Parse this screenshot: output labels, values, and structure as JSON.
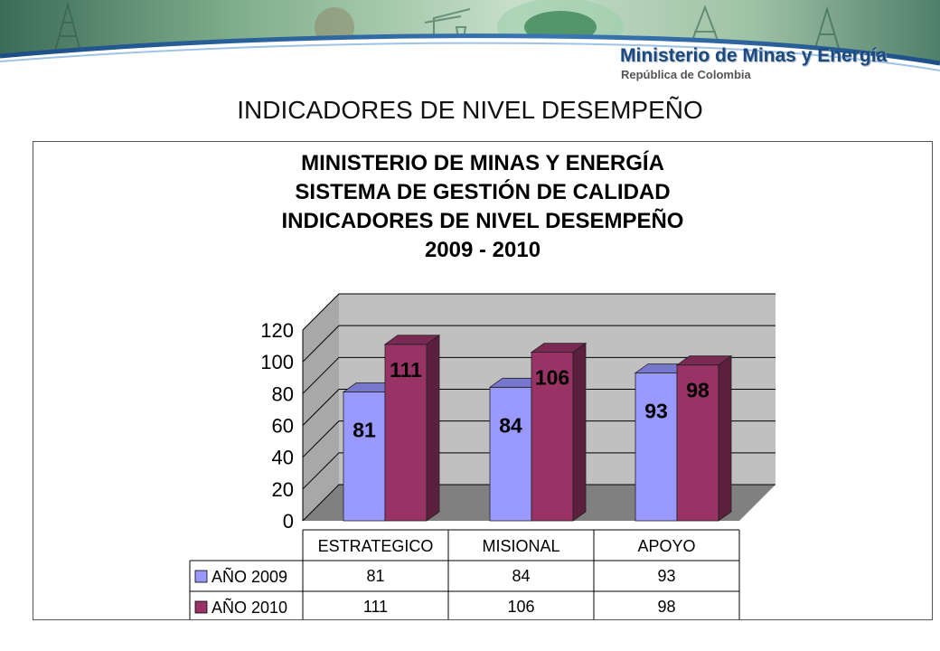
{
  "header": {
    "brand_name": "Ministerio de Minas y Energía",
    "brand_sub": "República de Colombia"
  },
  "slide_title": "INDICADORES DE NIVEL DESEMPEÑO",
  "colors": {
    "series_2009_front": "#9999ff",
    "series_2009_top": "#7777cc",
    "series_2009_side": "#6666aa",
    "series_2010_front": "#993366",
    "series_2010_top": "#7a2952",
    "series_2010_side": "#5c1f3d",
    "wall": "#c0c0c0",
    "floor": "#808080"
  },
  "chart_data": {
    "type": "bar",
    "style": "3d-clustered-column-with-data-table",
    "title_lines": [
      "MINISTERIO DE MINAS Y ENERGÍA",
      "SISTEMA DE GESTIÓN DE CALIDAD",
      "INDICADORES DE NIVEL DESEMPEÑO",
      "2009 - 2010"
    ],
    "categories": [
      "ESTRATEGICO",
      "MISIONAL",
      "APOYO"
    ],
    "series": [
      {
        "name": "AÑO 2009",
        "values": [
          81,
          84,
          93
        ]
      },
      {
        "name": "AÑO 2010",
        "values": [
          111,
          106,
          98
        ]
      }
    ],
    "ylim": [
      0,
      120
    ],
    "yticks": [
      0,
      20,
      40,
      60,
      80,
      100,
      120
    ],
    "grid": true,
    "legend": "data-table"
  }
}
